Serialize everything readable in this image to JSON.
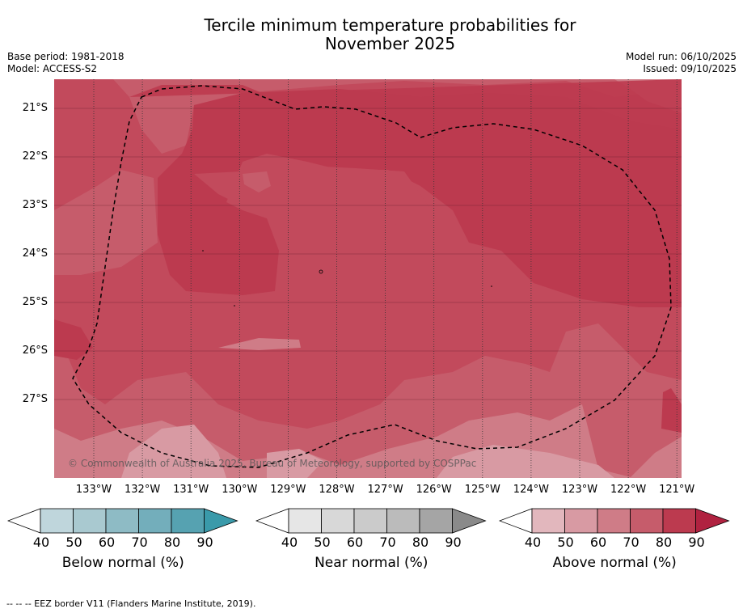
{
  "title_line1": "Tercile minimum temperature probabilities for",
  "title_line2": "November 2025",
  "base_period": "Base period: 1981-2018",
  "model": "Model: ACCESS-S2",
  "model_run": "Model run: 06/10/2025",
  "issued": "Issued: 09/10/2025",
  "copyright": "© Commonwealth of Australia 2025, Bureau of Meteorology, supported by COSPPac",
  "footnote": "-- -- -- EEZ border V11 (Flanders Marine Institute, 2019).",
  "lat_labels": [
    "21°S",
    "22°S",
    "23°S",
    "24°S",
    "25°S",
    "26°S",
    "27°S"
  ],
  "lon_labels": [
    "133°W",
    "132°W",
    "131°W",
    "130°W",
    "129°W",
    "128°W",
    "127°W",
    "126°W",
    "125°W",
    "124°W",
    "123°W",
    "122°W",
    "121°W"
  ],
  "colorbars": [
    {
      "title": "Below normal (%)",
      "ticks": [
        "40",
        "50",
        "60",
        "70",
        "80",
        "90"
      ],
      "colors": [
        "#bfd6dc",
        "#a9c9d0",
        "#8ebbc5",
        "#73aebb",
        "#56a2b1",
        "#3a9aaa"
      ]
    },
    {
      "title": "Near normal (%)",
      "ticks": [
        "40",
        "50",
        "60",
        "70",
        "80",
        "90"
      ],
      "colors": [
        "#e6e6e6",
        "#d8d8d8",
        "#cbcbcb",
        "#bbbbbb",
        "#a5a5a5",
        "#8a8a8a"
      ]
    },
    {
      "title": "Above normal (%)",
      "ticks": [
        "40",
        "50",
        "60",
        "70",
        "80",
        "90"
      ],
      "colors": [
        "#e2b7bd",
        "#d89aa3",
        "#cf7c87",
        "#c65c6b",
        "#bc3a4f",
        "#b02240"
      ]
    }
  ]
}
